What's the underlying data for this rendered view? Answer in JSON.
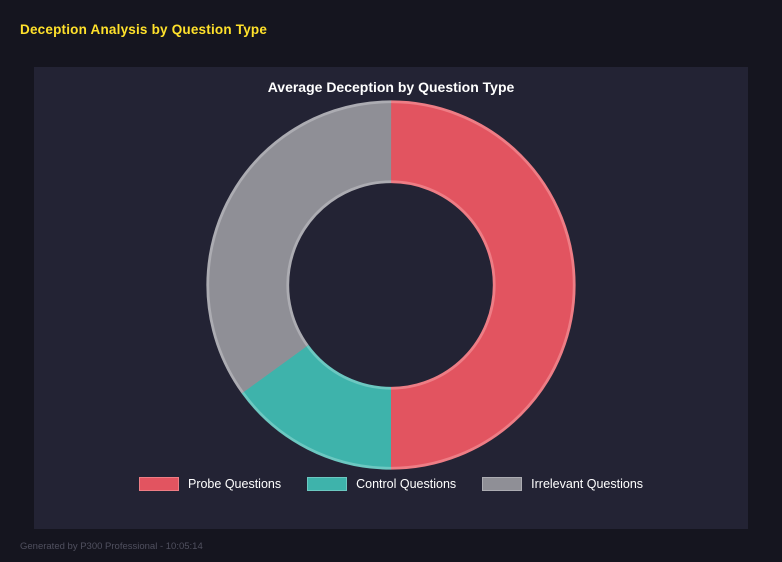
{
  "page": {
    "title": "Deception Analysis by Question Type",
    "footer": "Generated by P300 Professional - 10:05:14"
  },
  "chart_data": {
    "type": "pie",
    "subtype": "donut",
    "title": "Average Deception by Question Type",
    "categories": [
      "Probe Questions",
      "Control Questions",
      "Irrelevant Questions"
    ],
    "values": [
      50,
      15,
      35
    ],
    "colors": [
      "#e25460",
      "#3eb3ab",
      "#8f8f96"
    ],
    "border_colors": [
      "#ee7d85",
      "#6cc8c1",
      "#acacb2"
    ],
    "hole_ratio": 0.57,
    "legend_position": "bottom",
    "start_angle_deg": -90,
    "direction": "clockwise"
  },
  "colors": {
    "page_background": "#15151f",
    "panel_background": "#232334",
    "title_accent": "#ffe12b",
    "text_primary": "#ffffff",
    "footer_text": "#50505f"
  }
}
